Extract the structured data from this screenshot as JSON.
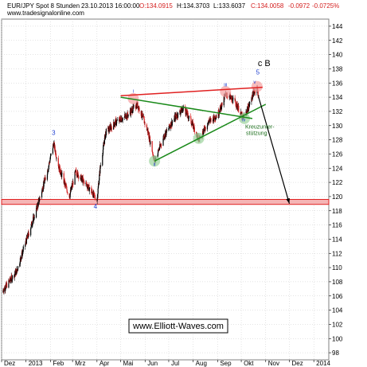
{
  "header": {
    "title": "EUR/JPY Spot 8 Stunden",
    "datetime": "23.10.2013 16:00:00",
    "open": "O:134.0915",
    "high": "H:134.3703",
    "low": "L:133.6037",
    "close": "C:134.0058",
    "change": "-0.0972",
    "change_pct": "-0.0725%",
    "source": "www.tradesignalonline.com"
  },
  "watermark": "www.Elliott-Waves.com",
  "colors": {
    "bull": "#000000",
    "bear": "#d42020",
    "resistance": "#e02020",
    "support": "#1a8a1a",
    "wave_label": "#1f3fd0",
    "target_band": "#e02020",
    "highlight": "#f5b5b5"
  },
  "chart_data": {
    "type": "line",
    "ylim": [
      97,
      145
    ],
    "yticks": [
      98,
      100,
      102,
      104,
      106,
      108,
      110,
      112,
      114,
      116,
      118,
      120,
      122,
      124,
      126,
      128,
      130,
      132,
      134,
      136,
      138,
      140,
      142,
      144
    ],
    "ytick_labels": [
      "98",
      "100",
      "102",
      "104",
      "106",
      "108",
      "110",
      "112",
      "114",
      "116",
      "118",
      "120",
      "122",
      "124",
      "126",
      "128",
      "130",
      "132",
      "134",
      "136",
      "138",
      "140",
      "142",
      "144"
    ],
    "xlim": [
      "2012-12-01",
      "2014-01-20"
    ],
    "xtick_labels": [
      "Dez",
      "2013",
      "Feb",
      "Mrz",
      "Apr",
      "Mai",
      "Jun",
      "Jul",
      "Aug",
      "Sep",
      "Okt",
      "Nov",
      "Dez",
      "2014"
    ],
    "xtick_dates": [
      "2012-12-01",
      "2013-01-01",
      "2013-02-01",
      "2013-03-01",
      "2013-04-01",
      "2013-05-01",
      "2013-06-01",
      "2013-07-01",
      "2013-08-01",
      "2013-09-01",
      "2013-10-01",
      "2013-11-01",
      "2013-12-01",
      "2014-01-01"
    ],
    "grid": true,
    "price_path": [
      {
        "date": "2012-12-01",
        "price": 106.5
      },
      {
        "date": "2012-12-20",
        "price": 109.5
      },
      {
        "date": "2013-01-02",
        "price": 114.0
      },
      {
        "date": "2013-01-15",
        "price": 118.5
      },
      {
        "date": "2013-01-28",
        "price": 123.5
      },
      {
        "date": "2013-02-05",
        "price": 127.5
      },
      {
        "date": "2013-02-12",
        "price": 124.0
      },
      {
        "date": "2013-02-25",
        "price": 120.0
      },
      {
        "date": "2013-03-05",
        "price": 123.5
      },
      {
        "date": "2013-03-20",
        "price": 121.5
      },
      {
        "date": "2013-04-01",
        "price": 119.5
      },
      {
        "date": "2013-04-05",
        "price": 124.0
      },
      {
        "date": "2013-04-12",
        "price": 129.0
      },
      {
        "date": "2013-04-25",
        "price": 130.5
      },
      {
        "date": "2013-05-10",
        "price": 131.5
      },
      {
        "date": "2013-05-22",
        "price": 133.0
      },
      {
        "date": "2013-05-28",
        "price": 131.5
      },
      {
        "date": "2013-06-05",
        "price": 129.0
      },
      {
        "date": "2013-06-13",
        "price": 125.0
      },
      {
        "date": "2013-06-25",
        "price": 128.5
      },
      {
        "date": "2013-07-08",
        "price": 131.0
      },
      {
        "date": "2013-07-20",
        "price": 132.5
      },
      {
        "date": "2013-08-01",
        "price": 130.0
      },
      {
        "date": "2013-08-08",
        "price": 128.0
      },
      {
        "date": "2013-08-20",
        "price": 130.5
      },
      {
        "date": "2013-09-01",
        "price": 131.5
      },
      {
        "date": "2013-09-12",
        "price": 134.5
      },
      {
        "date": "2013-09-25",
        "price": 133.0
      },
      {
        "date": "2013-10-03",
        "price": 131.0
      },
      {
        "date": "2013-10-10",
        "price": 132.5
      },
      {
        "date": "2013-10-16",
        "price": 134.5
      },
      {
        "date": "2013-10-21",
        "price": 135.5
      },
      {
        "date": "2013-10-23",
        "price": 134.0
      }
    ],
    "resistance_line": [
      {
        "date": "2013-05-01",
        "price": 134.2
      },
      {
        "date": "2013-10-28",
        "price": 135.4
      }
    ],
    "support_line": [
      {
        "date": "2013-06-13",
        "price": 125.0
      },
      {
        "date": "2013-11-01",
        "price": 133.0
      }
    ],
    "inner_line": [
      {
        "date": "2013-05-01",
        "price": 134.0
      },
      {
        "date": "2013-10-15",
        "price": 131.0
      }
    ],
    "forecast_arrow": [
      {
        "date": "2013-10-23",
        "price": 134.0
      },
      {
        "date": "2013-12-01",
        "price": 119.0
      }
    ],
    "target_band": [
      118.9,
      119.6
    ],
    "wave_labels": [
      {
        "text": "3",
        "date": "2013-02-05",
        "price": 128.7,
        "size": "big"
      },
      {
        "text": "4",
        "date": "2013-03-30",
        "price": 118.3,
        "size": "big"
      },
      {
        "text": "i",
        "date": "2013-05-17",
        "price": 134.6,
        "size": "small"
      },
      {
        "text": "ii",
        "date": "2013-06-13",
        "price": 124.3,
        "size": "small"
      },
      {
        "text": "iii",
        "date": "2013-09-11",
        "price": 135.5,
        "size": "small"
      },
      {
        "text": "iv",
        "date": "2013-10-04",
        "price": 130.6,
        "size": "small"
      },
      {
        "text": "v",
        "date": "2013-10-18",
        "price": 135.9,
        "size": "small"
      },
      {
        "text": "5",
        "date": "2013-10-22",
        "price": 137.2,
        "size": "big"
      }
    ],
    "highlight_circles": [
      {
        "date": "2013-05-17",
        "price": 133.8,
        "color": "red"
      },
      {
        "date": "2013-06-13",
        "price": 125.0,
        "color": "green"
      },
      {
        "date": "2013-08-08",
        "price": 128.2,
        "color": "green"
      },
      {
        "date": "2013-09-11",
        "price": 134.8,
        "color": "red"
      },
      {
        "date": "2013-10-05",
        "price": 131.0,
        "color": "green"
      },
      {
        "date": "2013-10-21",
        "price": 135.5,
        "color": "red"
      }
    ],
    "annotations": [
      {
        "text": "c B",
        "date": "2013-10-22",
        "price": 138.4
      },
      {
        "text": "Kreuzunter-",
        "date": "2013-10-06",
        "price": 129.6
      },
      {
        "text": "stützung",
        "date": "2013-10-07",
        "price": 128.7
      }
    ]
  }
}
